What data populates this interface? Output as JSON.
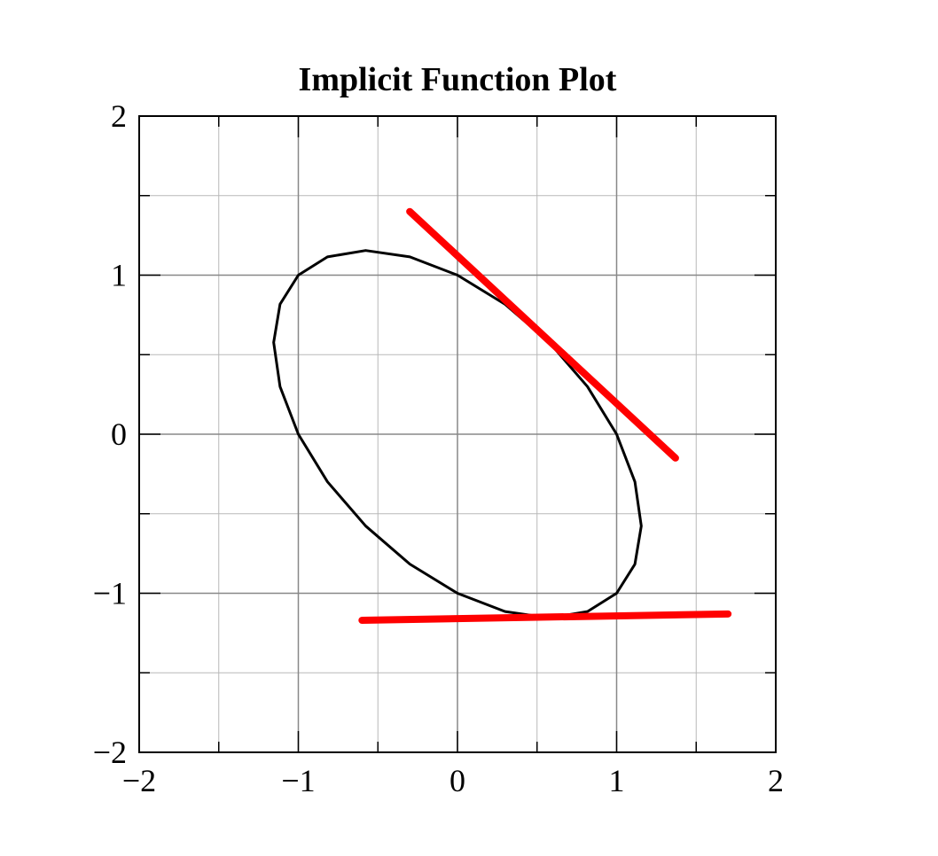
{
  "chart_data": {
    "type": "line",
    "title": "Implicit Function Plot",
    "xlim": [
      -2,
      2
    ],
    "ylim": [
      -2,
      2
    ],
    "xticks": [
      {
        "value": -2,
        "label": "−2"
      },
      {
        "value": -1,
        "label": "−1"
      },
      0,
      1,
      2
    ],
    "yticks": [
      {
        "value": -2,
        "label": "−2"
      },
      {
        "value": -1,
        "label": "−1"
      },
      0,
      1,
      2
    ],
    "xminor": [
      -1.5,
      -0.5,
      0.5,
      1.5
    ],
    "yminor": [
      -1.5,
      -0.5,
      0.5,
      1.5
    ],
    "grid": true,
    "series": [
      {
        "color": "#000000",
        "x": [
          0.577,
          0.817,
          1.0,
          1.115,
          1.155,
          1.115,
          1.0,
          0.817,
          0.577,
          0.299,
          0.0,
          -0.299,
          -0.577,
          -0.817,
          -1.0,
          -1.115,
          -1.155,
          -1.115,
          -1.0,
          -0.817,
          -0.577,
          -0.299,
          0.0,
          0.299,
          0.577
        ],
        "values": [
          0.577,
          0.299,
          0.0,
          -0.299,
          -0.577,
          -0.817,
          -1.0,
          -1.115,
          -1.155,
          -1.115,
          -1.0,
          -0.817,
          -0.577,
          -0.299,
          0.0,
          0.299,
          0.577,
          0.817,
          1.0,
          1.115,
          1.155,
          1.115,
          1.0,
          0.817,
          0.577
        ]
      },
      {
        "color": "#ff0000",
        "x": [
          -0.3,
          1.37
        ],
        "values": [
          1.4,
          -0.15
        ]
      },
      {
        "color": "#ff0000",
        "x": [
          -0.6,
          1.7
        ],
        "values": [
          -1.17,
          -1.13
        ]
      }
    ]
  }
}
